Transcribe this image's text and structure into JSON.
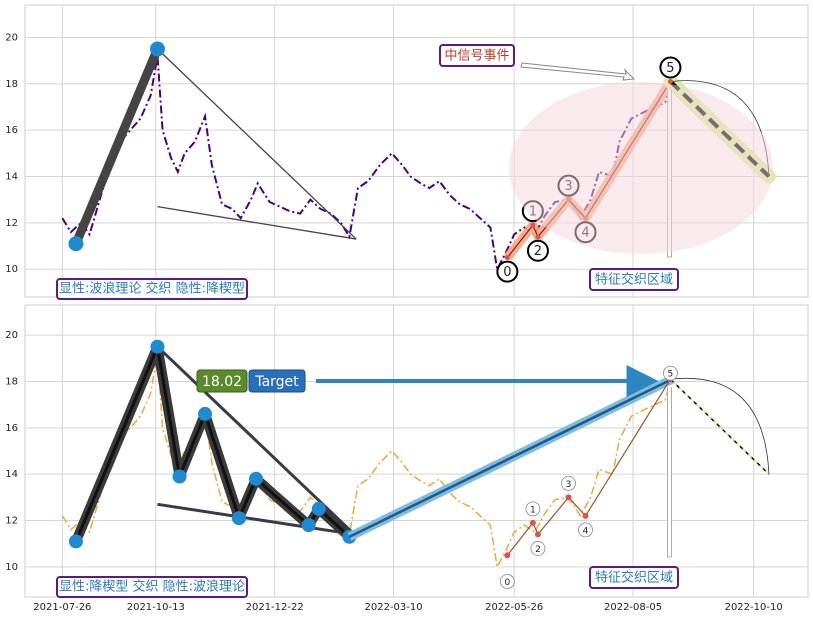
{
  "chart_data": [
    {
      "type": "line",
      "x": [
        0,
        5,
        11,
        16,
        22,
        28,
        34,
        40,
        46,
        52,
        56,
        59,
        64,
        68,
        72,
        78,
        84,
        88,
        94,
        100,
        105,
        111,
        115,
        122,
        128,
        134,
        140,
        146,
        152,
        158,
        164,
        169,
        174,
        180,
        187,
        194,
        200,
        205,
        211,
        216,
        222,
        228,
        234,
        240,
        246,
        252,
        256,
        261,
        266,
        272,
        278,
        284,
        290,
        298,
        305,
        311,
        316,
        324,
        328,
        335,
        343,
        349,
        355,
        358
      ],
      "values": [
        12.2,
        11.6,
        12.0,
        11.5,
        13.0,
        14.5,
        15.5,
        16.0,
        16.5,
        17.5,
        19.2,
        16.0,
        14.8,
        14.2,
        15.0,
        15.5,
        16.6,
        14.5,
        12.8,
        12.6,
        12.2,
        13.0,
        13.7,
        12.9,
        12.7,
        12.5,
        12.4,
        13.0,
        12.6,
        12.4,
        12.0,
        11.4,
        13.5,
        13.8,
        14.5,
        15.0,
        14.5,
        14.0,
        13.7,
        13.5,
        13.8,
        13.2,
        12.8,
        12.6,
        12.2,
        11.8,
        10.0,
        10.7,
        11.5,
        11.8,
        11.5,
        12.3,
        12.9,
        13.0,
        12.2,
        13.0,
        14.2,
        14.0,
        15.5,
        16.5,
        16.8,
        17.0,
        17.2,
        18.1
      ],
      "color": "#4b0082",
      "xlim": [
        -22,
        439
      ],
      "xticks": [
        0,
        55,
        125,
        195,
        266,
        336,
        407
      ],
      "ylim": [
        8.8,
        21.4
      ],
      "yticks": [
        10,
        12,
        14,
        16,
        18,
        20
      ],
      "grid": true,
      "trend": {
        "x": [
          8,
          56
        ],
        "values": [
          11.1,
          19.5
        ]
      },
      "wedge_upper": {
        "x": [
          56,
          173
        ],
        "values": [
          19.5,
          11.3
        ]
      },
      "wedge_lower": {
        "x": [
          56,
          173
        ],
        "values": [
          12.7,
          11.3
        ]
      },
      "wave": {
        "labels": [
          "0",
          "1",
          "2",
          "3",
          "4",
          "5"
        ],
        "x": [
          262,
          277,
          280,
          298,
          308,
          358
        ],
        "values": [
          10.5,
          11.9,
          11.4,
          13.0,
          12.2,
          18.1
        ],
        "color": "#f4a582"
      },
      "projection": {
        "x": [
          358,
          416
        ],
        "values": [
          18.1,
          14.0
        ]
      },
      "signal": "中信号事件",
      "zone": "特征交织区域",
      "caption": "显性:波浪理论 交织 隐性:降楔型"
    },
    {
      "type": "line",
      "x": [
        0,
        5,
        11,
        16,
        22,
        28,
        34,
        40,
        46,
        52,
        56,
        59,
        64,
        68,
        72,
        78,
        84,
        88,
        94,
        100,
        105,
        111,
        115,
        122,
        128,
        134,
        140,
        146,
        152,
        158,
        164,
        169,
        174,
        180,
        187,
        194,
        200,
        205,
        211,
        216,
        222,
        228,
        234,
        240,
        246,
        252,
        256,
        261,
        266,
        272,
        278,
        284,
        290,
        298,
        305,
        311,
        316,
        324,
        328,
        335,
        343,
        349,
        355,
        358
      ],
      "values": [
        12.2,
        11.6,
        12.0,
        11.5,
        13.0,
        14.5,
        15.5,
        16.0,
        16.5,
        17.5,
        19.2,
        16.0,
        14.8,
        14.2,
        15.0,
        15.5,
        16.6,
        14.5,
        12.8,
        12.6,
        12.2,
        13.0,
        13.7,
        12.9,
        12.7,
        12.5,
        12.4,
        13.0,
        12.6,
        12.4,
        12.0,
        11.4,
        13.5,
        13.8,
        14.5,
        15.0,
        14.5,
        14.0,
        13.7,
        13.5,
        13.8,
        13.2,
        12.8,
        12.6,
        12.2,
        11.8,
        10.0,
        10.7,
        11.5,
        11.8,
        11.5,
        12.3,
        12.9,
        13.0,
        12.2,
        13.0,
        14.2,
        14.0,
        15.5,
        16.5,
        16.8,
        17.0,
        17.2,
        18.1
      ],
      "color": "#f0a830",
      "xlim": [
        -22,
        439
      ],
      "xticks": [
        {
          "value": 0,
          "label": "2021-07-26"
        },
        {
          "value": 55,
          "label": "2021-10-13"
        },
        {
          "value": 125,
          "label": "2021-12-22"
        },
        {
          "value": 195,
          "label": "2022-03-10"
        },
        {
          "value": 266,
          "label": "2022-05-26"
        },
        {
          "value": 336,
          "label": "2022-08-05"
        },
        {
          "value": 407,
          "label": "2022-10-10"
        }
      ],
      "ylim": [
        8.7,
        21.3
      ],
      "yticks": [
        10,
        12,
        14,
        16,
        18,
        20
      ],
      "grid": true,
      "pattern": {
        "x": [
          8,
          56,
          69,
          84,
          104,
          114,
          145,
          151,
          169
        ],
        "values": [
          11.1,
          19.5,
          13.9,
          16.6,
          12.1,
          13.8,
          11.8,
          12.5,
          11.3
        ]
      },
      "wedge_upper": {
        "x": [
          56,
          172
        ],
        "values": [
          19.5,
          11.4
        ]
      },
      "wedge_lower": {
        "x": [
          56,
          172
        ],
        "values": [
          12.7,
          11.4
        ]
      },
      "breakout": {
        "x": [
          169,
          359
        ],
        "values": [
          11.3,
          18.1
        ]
      },
      "target": {
        "value": 18.02,
        "label": "Target"
      },
      "wave": {
        "labels": [
          "0",
          "1",
          "2",
          "3",
          "4",
          "5"
        ],
        "x": [
          262,
          277,
          280,
          298,
          308,
          358
        ],
        "values": [
          10.5,
          11.9,
          11.4,
          13.0,
          12.2,
          18.1
        ],
        "color": "#f4a582"
      },
      "projection": {
        "x": [
          358,
          416
        ],
        "values": [
          18.1,
          14.0
        ]
      },
      "zone": "特征交织区域",
      "caption": "显性:降楔型 交织 隐性:波浪理论"
    }
  ]
}
